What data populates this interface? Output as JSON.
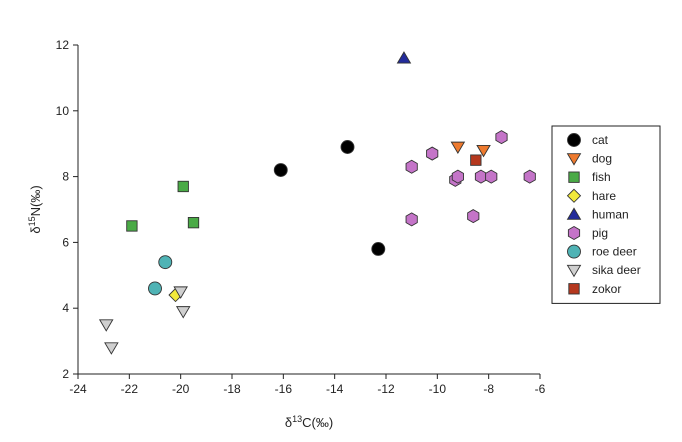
{
  "chart_data": {
    "type": "scatter",
    "xlabel": "δ13C(‰)",
    "ylabel": "δ15N(‰)",
    "xlim": [
      -24,
      -6
    ],
    "ylim": [
      2,
      12
    ],
    "xticks": [
      -24,
      -22,
      -20,
      -18,
      -16,
      -14,
      -12,
      -10,
      -8,
      -6
    ],
    "yticks": [
      2,
      4,
      6,
      8,
      10,
      12
    ],
    "grid": false,
    "legend_position": "right",
    "series": [
      {
        "name": "cat",
        "marker": "circle",
        "color": "#000000",
        "points": [
          [
            -16.1,
            8.2
          ],
          [
            -13.5,
            8.9
          ],
          [
            -12.3,
            5.8
          ]
        ]
      },
      {
        "name": "dog",
        "marker": "triangle-down",
        "color": "#ee7a2e",
        "points": [
          [
            -9.2,
            8.9
          ],
          [
            -8.2,
            8.8
          ]
        ]
      },
      {
        "name": "fish",
        "marker": "square",
        "color": "#4aaa46",
        "points": [
          [
            -21.9,
            6.5
          ],
          [
            -19.9,
            7.7
          ],
          [
            -19.5,
            6.6
          ]
        ]
      },
      {
        "name": "hare",
        "marker": "diamond",
        "color": "#f2e93a",
        "points": [
          [
            -20.2,
            4.4
          ]
        ]
      },
      {
        "name": "human",
        "marker": "triangle-up",
        "color": "#232b9a",
        "points": [
          [
            -11.3,
            11.6
          ]
        ]
      },
      {
        "name": "pig",
        "marker": "hexagon",
        "color": "#c474c8",
        "points": [
          [
            -11.0,
            8.3
          ],
          [
            -10.2,
            8.7
          ],
          [
            -9.3,
            7.9
          ],
          [
            -9.2,
            8.0
          ],
          [
            -8.3,
            8.0
          ],
          [
            -7.9,
            8.0
          ],
          [
            -7.5,
            9.2
          ],
          [
            -6.4,
            8.0
          ],
          [
            -11.0,
            6.7
          ],
          [
            -8.6,
            6.8
          ]
        ]
      },
      {
        "name": "roe deer",
        "marker": "circle",
        "color": "#4fb3b5",
        "points": [
          [
            -20.6,
            5.4
          ],
          [
            -21.0,
            4.6
          ]
        ]
      },
      {
        "name": "sika deer",
        "marker": "triangle-down",
        "color": "#cfcfcf",
        "points": [
          [
            -22.9,
            3.5
          ],
          [
            -22.7,
            2.8
          ],
          [
            -20.0,
            4.5
          ],
          [
            -19.9,
            3.9
          ]
        ]
      },
      {
        "name": "zokor",
        "marker": "square",
        "color": "#b5381e",
        "points": [
          [
            -8.5,
            8.5
          ]
        ]
      }
    ]
  }
}
